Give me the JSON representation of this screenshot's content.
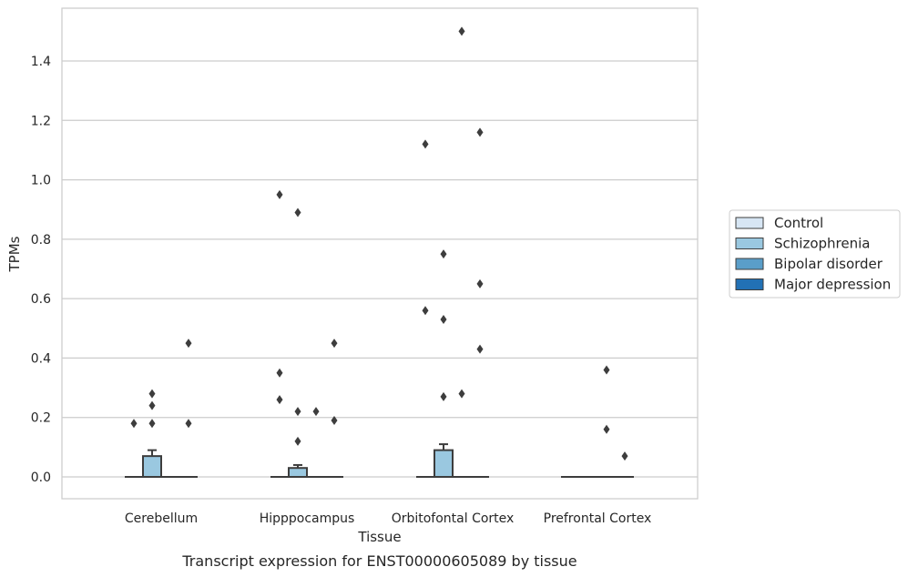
{
  "caption": "Transcript expression for ENST00000605089 by tissue",
  "chart_data": {
    "type": "box",
    "title": "",
    "xlabel": "Tissue",
    "ylabel": "TPMs",
    "ylim": [
      -0.07,
      1.55
    ],
    "yticks": [
      0.0,
      0.2,
      0.4,
      0.6,
      0.8,
      1.0,
      1.2,
      1.4
    ],
    "ytick_labels": [
      "0.0",
      "0.2",
      "0.4",
      "0.6",
      "0.8",
      "1.0",
      "1.2",
      "1.4"
    ],
    "grid": "horizontal",
    "legend_position": "right",
    "categories": [
      "Cerebellum",
      "Hipppocampus",
      "Orbitofontal Cortex",
      "Prefrontal Cortex"
    ],
    "series": [
      {
        "name": "Control",
        "color": "#d7e6f4",
        "boxes": [
          {
            "q1": 0,
            "median": 0,
            "q3": 0,
            "whisker_low": 0,
            "whisker_high": 0,
            "outliers": [
              0.18
            ]
          },
          {
            "q1": 0,
            "median": 0,
            "q3": 0,
            "whisker_low": 0,
            "whisker_high": 0,
            "outliers": [
              0.95,
              0.35,
              0.26
            ]
          },
          {
            "q1": 0,
            "median": 0,
            "q3": 0,
            "whisker_low": 0,
            "whisker_high": 0,
            "outliers": [
              1.12,
              0.56
            ]
          },
          {
            "q1": 0,
            "median": 0,
            "q3": 0,
            "whisker_low": 0,
            "whisker_high": 0,
            "outliers": []
          }
        ]
      },
      {
        "name": "Schizophrenia",
        "color": "#9ac8e0",
        "boxes": [
          {
            "q1": 0,
            "median": 0,
            "q3": 0.07,
            "whisker_low": 0,
            "whisker_high": 0.09,
            "outliers": [
              0.28,
              0.24,
              0.18
            ]
          },
          {
            "q1": 0,
            "median": 0,
            "q3": 0.03,
            "whisker_low": 0,
            "whisker_high": 0.04,
            "outliers": [
              0.89,
              0.22,
              0.12
            ]
          },
          {
            "q1": 0,
            "median": 0,
            "q3": 0.09,
            "whisker_low": 0,
            "whisker_high": 0.11,
            "outliers": [
              0.75,
              0.53,
              0.27
            ]
          },
          {
            "q1": 0,
            "median": 0,
            "q3": 0,
            "whisker_low": 0,
            "whisker_high": 0,
            "outliers": []
          }
        ]
      },
      {
        "name": "Bipolar disorder",
        "color": "#5a9ec9",
        "boxes": [
          {
            "q1": 0,
            "median": 0,
            "q3": 0,
            "whisker_low": 0,
            "whisker_high": 0,
            "outliers": []
          },
          {
            "q1": 0,
            "median": 0,
            "q3": 0,
            "whisker_low": 0,
            "whisker_high": 0,
            "outliers": [
              0.22
            ]
          },
          {
            "q1": 0,
            "median": 0,
            "q3": 0,
            "whisker_low": 0,
            "whisker_high": 0,
            "outliers": [
              1.5,
              0.28
            ]
          },
          {
            "q1": 0,
            "median": 0,
            "q3": 0,
            "whisker_low": 0,
            "whisker_high": 0,
            "outliers": [
              0.36,
              0.16
            ]
          }
        ]
      },
      {
        "name": "Major depression",
        "color": "#2271b5",
        "boxes": [
          {
            "q1": 0,
            "median": 0,
            "q3": 0,
            "whisker_low": 0,
            "whisker_high": 0,
            "outliers": [
              0.45,
              0.18
            ]
          },
          {
            "q1": 0,
            "median": 0,
            "q3": 0,
            "whisker_low": 0,
            "whisker_high": 0,
            "outliers": [
              0.45,
              0.19
            ]
          },
          {
            "q1": 0,
            "median": 0,
            "q3": 0,
            "whisker_low": 0,
            "whisker_high": 0,
            "outliers": [
              1.16,
              0.65,
              0.43
            ]
          },
          {
            "q1": 0,
            "median": 0,
            "q3": 0,
            "whisker_low": 0,
            "whisker_high": 0,
            "outliers": [
              0.07
            ]
          }
        ]
      }
    ]
  }
}
